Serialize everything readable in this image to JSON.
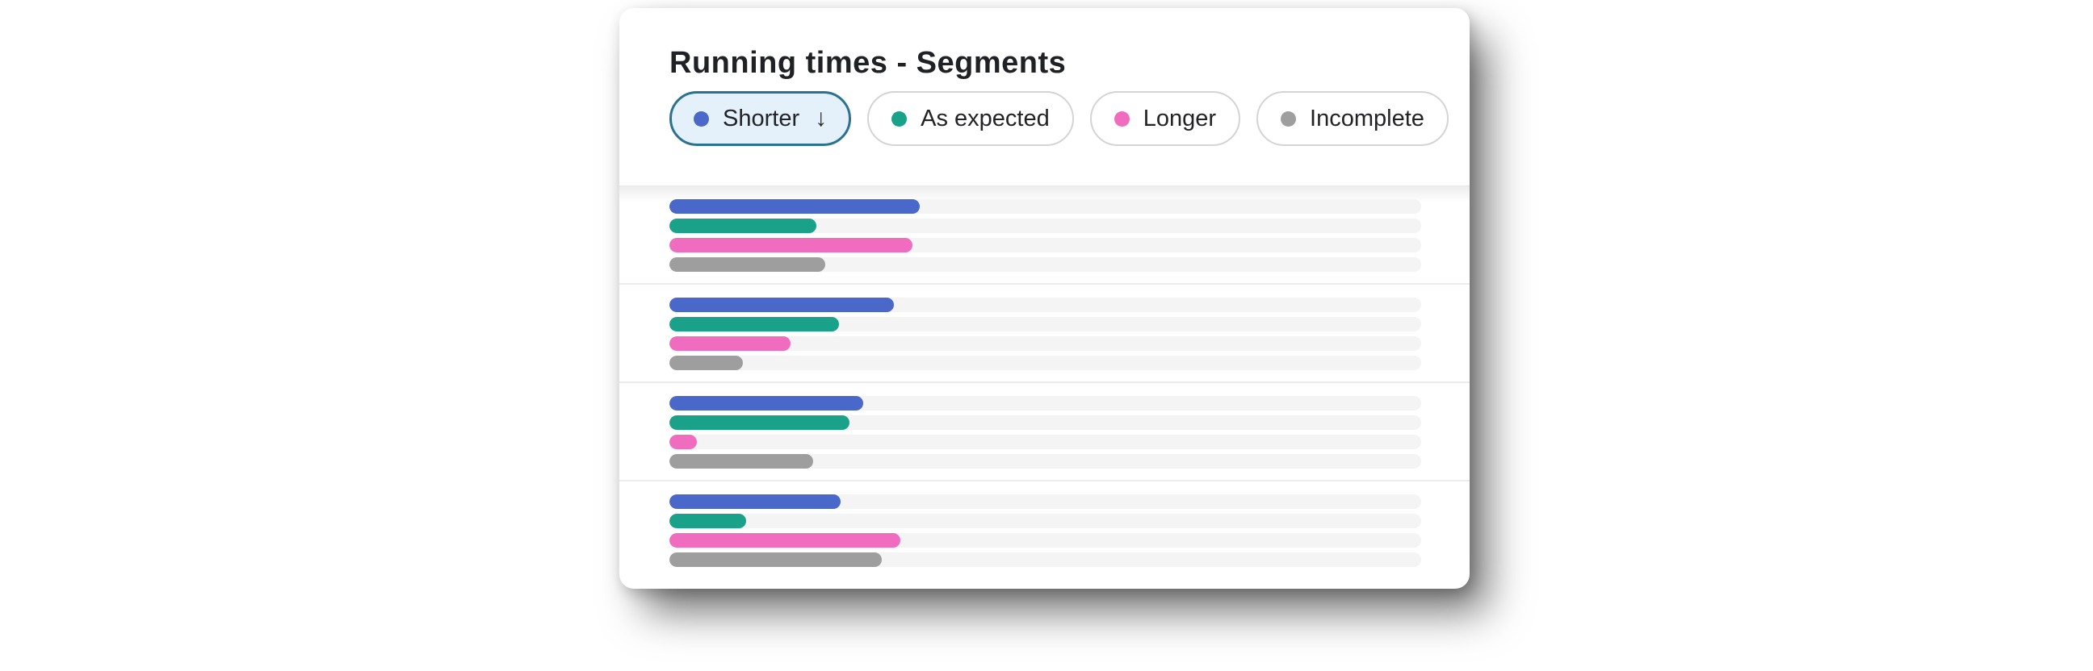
{
  "page": {
    "background": "#ffffff"
  },
  "card": {
    "title": "Running times - Segments",
    "filters": [
      {
        "id": "shorter",
        "label": "Shorter",
        "dot_color": "#4a68c9",
        "selected": true,
        "sort_icon": "↓"
      },
      {
        "id": "as-expected",
        "label": "As expected",
        "dot_color": "#19a189",
        "selected": false,
        "sort_icon": ""
      },
      {
        "id": "longer",
        "label": "Longer",
        "dot_color": "#ef6cbe",
        "selected": false,
        "sort_icon": ""
      },
      {
        "id": "incomplete",
        "label": "Incomplete",
        "dot_color": "#9e9e9e",
        "selected": false,
        "sort_icon": ""
      }
    ],
    "selected_pill_style": {
      "background": "#e4f1fb",
      "border": "#2b7291"
    },
    "unselected_pill_style": {
      "background": "#ffffff",
      "border": "#d4d4d4"
    }
  },
  "chart_data": {
    "type": "bar",
    "orientation": "horizontal",
    "value_unit": "percent_of_track_width",
    "legend": [
      "Shorter",
      "As expected",
      "Longer",
      "Incomplete"
    ],
    "series_colors": [
      "#4a68c9",
      "#19a189",
      "#ef6cbe",
      "#9e9e9e"
    ],
    "track_color": "#f4f4f4",
    "axis_labels": "none",
    "grid": false,
    "groups": [
      {
        "values": [
          33.3,
          19.6,
          32.3,
          20.7
        ]
      },
      {
        "values": [
          29.9,
          22.6,
          16.1,
          9.8
        ]
      },
      {
        "values": [
          25.8,
          24.0,
          3.6,
          19.1
        ]
      },
      {
        "values": [
          22.8,
          10.2,
          30.7,
          28.2
        ]
      }
    ]
  }
}
